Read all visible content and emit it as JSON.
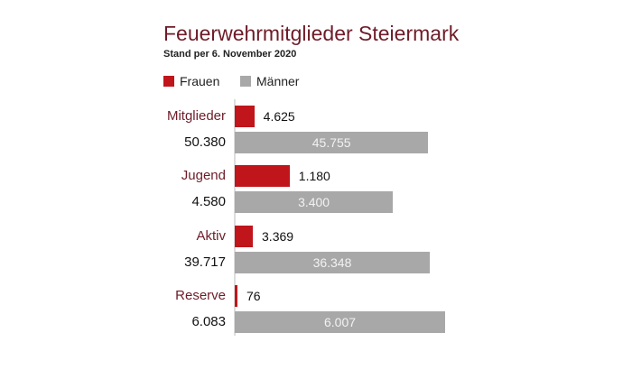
{
  "chart_data": {
    "type": "bar",
    "title": "Feuerwehrmitglieder Steiermark",
    "subtitle": "Stand per 6. November 2020",
    "legend": [
      {
        "name": "Frauen",
        "color": "#c0151b"
      },
      {
        "name": "Männer",
        "color": "#a8a8a8"
      }
    ],
    "legend_position": "top-left",
    "categories": [
      "Mitglieder",
      "Jugend",
      "Aktiv",
      "Reserve"
    ],
    "totals": [
      "50.380",
      "4.580",
      "39.717",
      "6.083"
    ],
    "series": [
      {
        "name": "Frauen",
        "values": [
          4625,
          1180,
          3369,
          76
        ],
        "labels": [
          "4.625",
          "1.180",
          "3.369",
          "76"
        ]
      },
      {
        "name": "Männer",
        "values": [
          45755,
          3400,
          36348,
          6007
        ],
        "labels": [
          "45.755",
          "3.400",
          "36.348",
          "6.007"
        ]
      }
    ],
    "scaling": "bar length = share of category total"
  }
}
